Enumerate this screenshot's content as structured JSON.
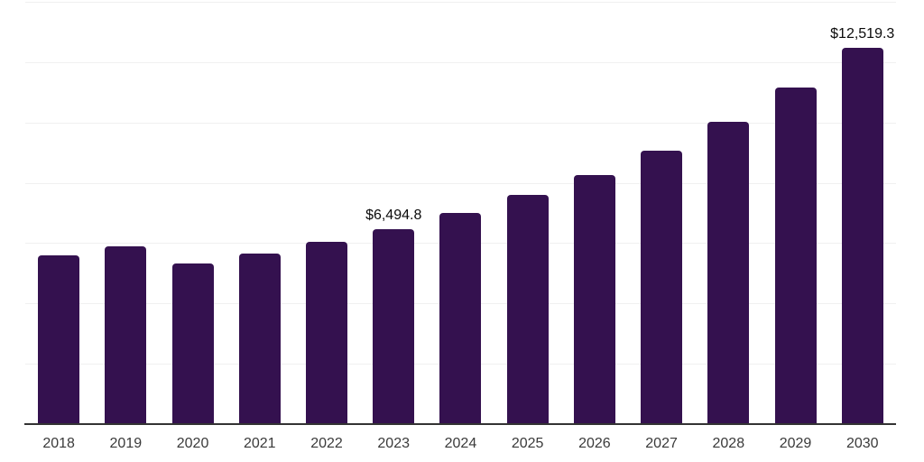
{
  "chart_data": {
    "type": "bar",
    "title": "",
    "xlabel": "",
    "ylabel": "",
    "categories": [
      "2018",
      "2019",
      "2020",
      "2021",
      "2022",
      "2023",
      "2024",
      "2025",
      "2026",
      "2027",
      "2028",
      "2029",
      "2030"
    ],
    "values": [
      5620,
      5920,
      5360,
      5670,
      6070,
      6494.8,
      7020,
      7615,
      8290,
      9100,
      10065,
      11185,
      12519.3
    ],
    "data_labels": {
      "2023": "$6,494.8",
      "2030": "$12,519.3"
    },
    "ylim": [
      0,
      14000
    ],
    "gridline_step": 2000,
    "grid": "horizontal",
    "legend": "none",
    "bar_color": "#34114F",
    "gridline_color": "#f0f0f0",
    "axis_line_color": "#333333",
    "tick_label_color": "#3a3a3a",
    "data_label_color": "#0a0a0a"
  }
}
